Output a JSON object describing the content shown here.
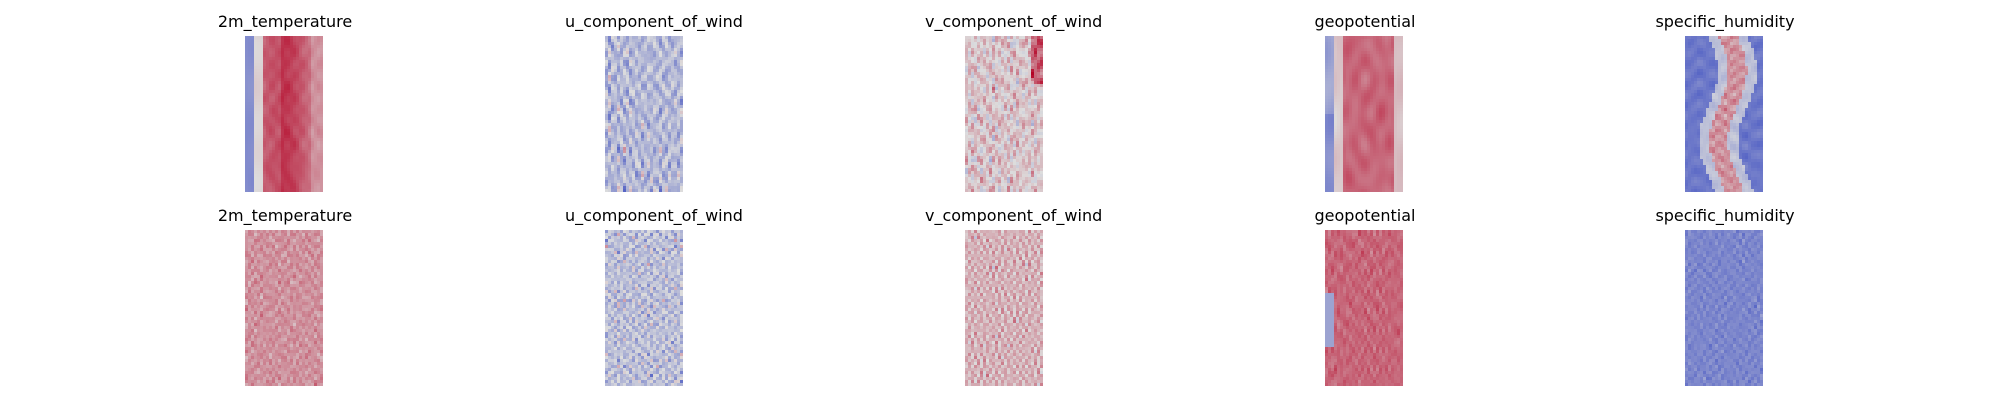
{
  "figure": {
    "rows": [
      {
        "panels": [
          {
            "title": "2m_temperature",
            "key": "t2m_a"
          },
          {
            "title": "u_component_of_wind",
            "key": "u_a"
          },
          {
            "title": "v_component_of_wind",
            "key": "v_a"
          },
          {
            "title": "geopotential",
            "key": "z_a"
          },
          {
            "title": "specific_humidity",
            "key": "q_a"
          }
        ]
      },
      {
        "panels": [
          {
            "title": "2m_temperature",
            "key": "t2m_b"
          },
          {
            "title": "u_component_of_wind",
            "key": "u_b"
          },
          {
            "title": "v_component_of_wind",
            "key": "v_b"
          },
          {
            "title": "geopotential",
            "key": "z_b"
          },
          {
            "title": "specific_humidity",
            "key": "q_b"
          }
        ]
      }
    ]
  },
  "chart_data": [
    {
      "type": "heatmap",
      "title": "2m_temperature",
      "colormap": "coolwarm",
      "axes": "off",
      "pattern": "smooth-warm-with-left-cool-strip"
    },
    {
      "type": "heatmap",
      "title": "u_component_of_wind",
      "colormap": "coolwarm",
      "axes": "off",
      "pattern": "mixed-cool-dominant"
    },
    {
      "type": "heatmap",
      "title": "v_component_of_wind",
      "colormap": "coolwarm",
      "axes": "off",
      "pattern": "mixed-warm-edges"
    },
    {
      "type": "heatmap",
      "title": "geopotential",
      "colormap": "coolwarm",
      "axes": "off",
      "pattern": "strong-warm-left-cool-strip"
    },
    {
      "type": "heatmap",
      "title": "specific_humidity",
      "colormap": "coolwarm",
      "axes": "off",
      "pattern": "cool-with-warm-center-band"
    },
    {
      "type": "heatmap",
      "title": "2m_temperature",
      "colormap": "coolwarm",
      "axes": "off",
      "pattern": "noisy-warm"
    },
    {
      "type": "heatmap",
      "title": "u_component_of_wind",
      "colormap": "coolwarm",
      "axes": "off",
      "pattern": "noisy-mixed-cool"
    },
    {
      "type": "heatmap",
      "title": "v_component_of_wind",
      "colormap": "coolwarm",
      "axes": "off",
      "pattern": "noisy-warm-mixed"
    },
    {
      "type": "heatmap",
      "title": "geopotential",
      "colormap": "coolwarm",
      "axes": "off",
      "pattern": "noisy-strong-warm"
    },
    {
      "type": "heatmap",
      "title": "specific_humidity",
      "colormap": "coolwarm",
      "axes": "off",
      "pattern": "noisy-cool"
    }
  ]
}
